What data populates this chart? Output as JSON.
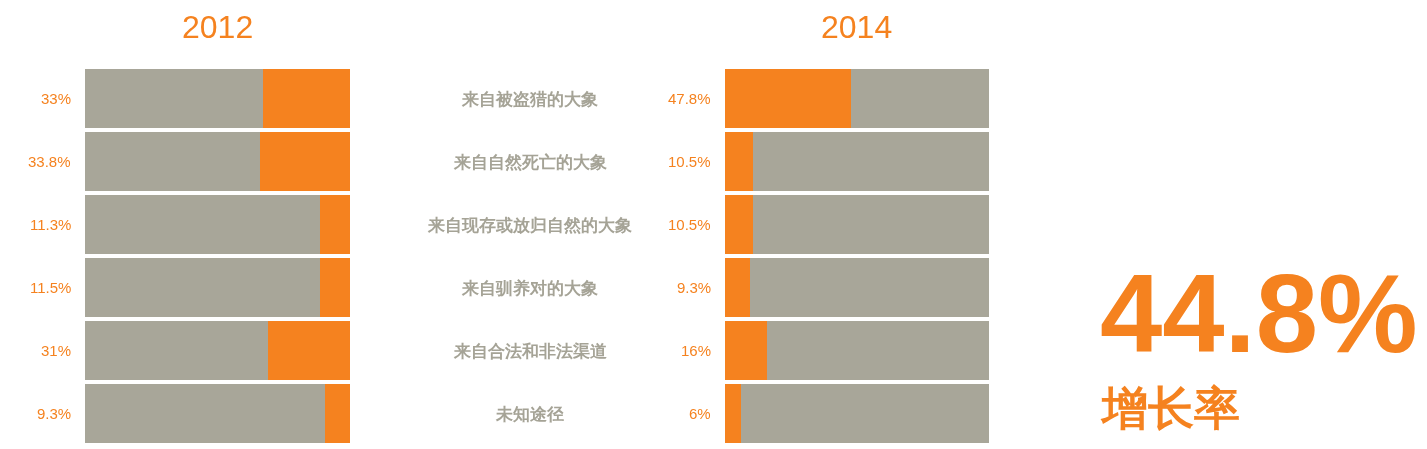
{
  "chart_data": [
    {
      "type": "bar",
      "title": "2012",
      "orientation": "horizontal",
      "stacked": true,
      "tick_labels": "y",
      "xlim": [
        100,
        0
      ],
      "categories": [
        "来自被盗猎的大象",
        "来自自然死亡的大象",
        "来自现存或放归自然的大象",
        "来自驯养对的大象",
        "来自合法和非法渠道",
        "未知途径"
      ],
      "series": [
        {
          "color": "#f5821f",
          "values": [
            33,
            33.8,
            11.3,
            11.5,
            31,
            9.3
          ],
          "value_labels": [
            "33%",
            "33.8%",
            "11.3%",
            "11.5%",
            "31%",
            "9.3%"
          ]
        },
        {
          "color": "#a8a699",
          "values": [
            67,
            66.2,
            88.7,
            88.5,
            69,
            90.7
          ]
        }
      ]
    },
    {
      "type": "bar",
      "title": "2014",
      "orientation": "horizontal",
      "stacked": true,
      "tick_labels": false,
      "xlim": [
        0,
        100
      ],
      "categories": [
        "来自被盗猎的大象",
        "来自自然死亡的大象",
        "来自现存或放归自然的大象",
        "来自驯养对的大象",
        "来自合法和非法渠道",
        "未知途径"
      ],
      "series": [
        {
          "color": "#f5821f",
          "values": [
            47.8,
            10.5,
            10.5,
            9.3,
            16,
            6
          ],
          "value_labels": [
            "47.8%",
            "10.5%",
            "10.5%",
            "9.3%",
            "16%",
            "6%"
          ]
        },
        {
          "color": "#a8a699",
          "values": [
            52.2,
            89.5,
            89.5,
            90.7,
            84,
            94
          ]
        }
      ]
    },
    {
      "type": "other",
      "title": "44.8%",
      "subtitle": "增长率"
    }
  ]
}
